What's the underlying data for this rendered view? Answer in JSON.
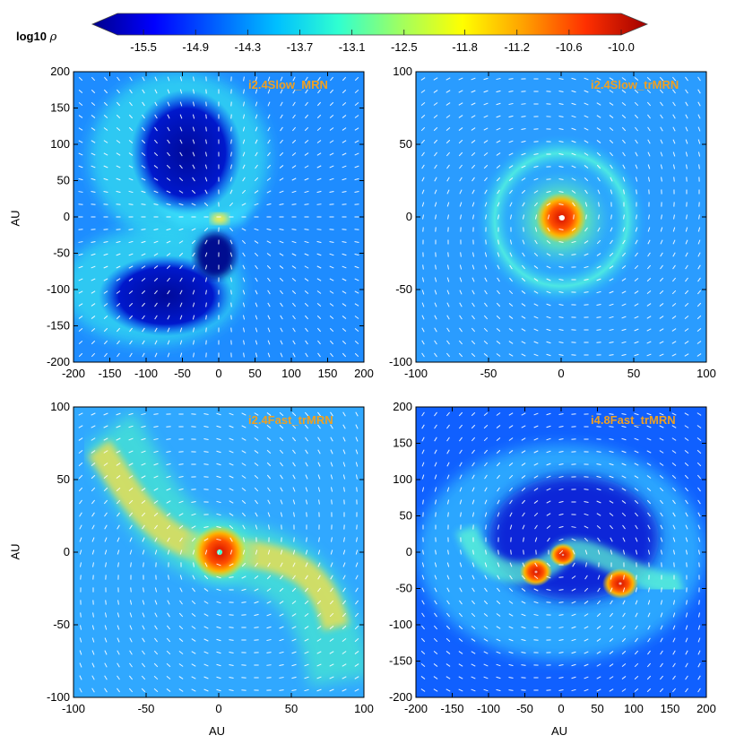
{
  "colorbar": {
    "label_prefix": "log10",
    "label_symbol": "ρ",
    "ticks": [
      "-15.5",
      "-14.9",
      "-14.3",
      "-13.7",
      "-13.1",
      "-12.5",
      "-11.8",
      "-11.2",
      "-10.6",
      "-10.0"
    ],
    "range": [
      -15.8,
      -10.0
    ],
    "colors": [
      "#00008b",
      "#0000ff",
      "#0060ff",
      "#00c0ff",
      "#30ffd0",
      "#a0ff60",
      "#ffff00",
      "#ffa000",
      "#ff3000",
      "#a00000"
    ]
  },
  "chart_data": [
    {
      "type": "heatmap",
      "title": "i2.4Slow_MRN",
      "ylabel": "AU",
      "xlim": [
        -200,
        200
      ],
      "ylim": [
        -200,
        200
      ],
      "xticks": [
        "-200",
        "-150",
        "-100",
        "-50",
        "0",
        "50",
        "100",
        "150",
        "200"
      ],
      "yticks": [
        "200",
        "150",
        "100",
        "50",
        "0",
        "-50",
        "-100",
        "-150",
        "-200"
      ]
    },
    {
      "type": "heatmap",
      "title": "i2.4Slow_trMRN",
      "xlim": [
        -100,
        100
      ],
      "ylim": [
        -100,
        100
      ],
      "xticks": [
        "-100",
        "-50",
        "0",
        "50",
        "100"
      ],
      "yticks": [
        "100",
        "50",
        "0",
        "-50",
        "-100"
      ]
    },
    {
      "type": "heatmap",
      "title": "i2.4Fast_trMRN",
      "xlabel": "AU",
      "ylabel": "AU",
      "xlim": [
        -100,
        100
      ],
      "ylim": [
        -100,
        100
      ],
      "xticks": [
        "-100",
        "-50",
        "0",
        "50",
        "100"
      ],
      "yticks": [
        "100",
        "50",
        "0",
        "-50",
        "-100"
      ]
    },
    {
      "type": "heatmap",
      "title": "i4.8Fast_trMRN",
      "xlabel": "AU",
      "xlim": [
        -200,
        200
      ],
      "ylim": [
        -200,
        200
      ],
      "xticks": [
        "-200",
        "-150",
        "-100",
        "-50",
        "0",
        "50",
        "100",
        "150",
        "200"
      ],
      "yticks": [
        "200",
        "150",
        "100",
        "50",
        "0",
        "-50",
        "-100",
        "-150",
        "-200"
      ]
    }
  ]
}
